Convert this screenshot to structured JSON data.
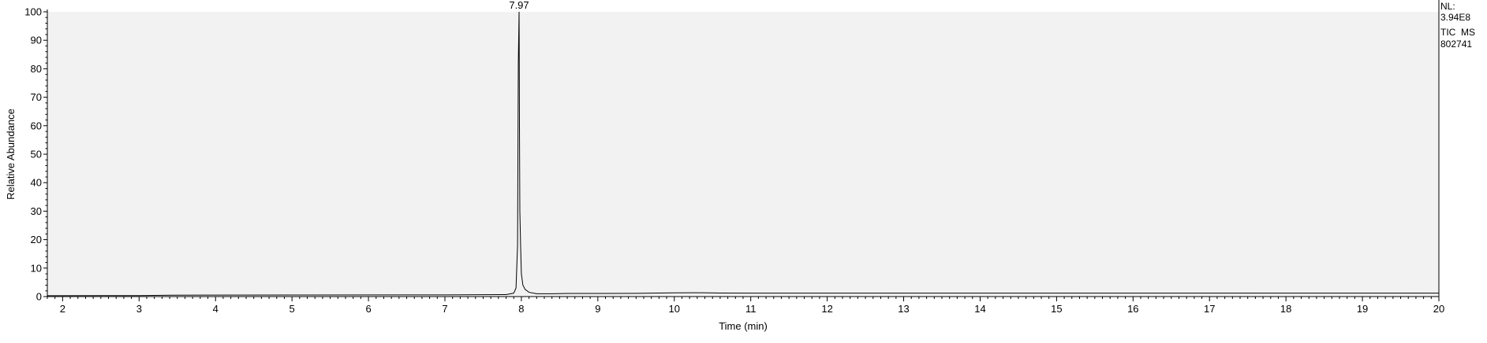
{
  "chart_data": {
    "type": "line",
    "title": "",
    "xlabel": "Time (min)",
    "ylabel": "Relative Abundance",
    "xlim": [
      1.8,
      20
    ],
    "ylim": [
      0,
      100
    ],
    "x_ticks": [
      2,
      3,
      4,
      5,
      6,
      7,
      8,
      9,
      10,
      11,
      12,
      13,
      14,
      15,
      16,
      17,
      18,
      19,
      20
    ],
    "y_ticks": [
      0,
      10,
      20,
      30,
      40,
      50,
      60,
      70,
      80,
      90,
      100
    ],
    "peak_labels": [
      {
        "x": 7.97,
        "y": 100,
        "label": "7.97"
      }
    ],
    "info": {
      "nl_label": "NL:",
      "nl_value": "3.94E8",
      "scan_filter": "TIC  MS",
      "sample_id": "802741"
    },
    "series": [
      {
        "name": "TIC MS 802741",
        "x": [
          1.8,
          3.0,
          3.4,
          5.0,
          7.0,
          7.8,
          7.9,
          7.93,
          7.95,
          7.96,
          7.97,
          7.975,
          7.98,
          7.99,
          8.0,
          8.02,
          8.05,
          8.1,
          8.2,
          8.4,
          8.6,
          9.0,
          9.5,
          10.0,
          10.3,
          10.6,
          11.0,
          12.0,
          14.0,
          16.0,
          18.0,
          20.0
        ],
        "values": [
          0.3,
          0.35,
          0.5,
          0.55,
          0.6,
          0.7,
          1.2,
          3.0,
          18.0,
          82.0,
          100.0,
          60.0,
          30.0,
          18.0,
          8.0,
          4.0,
          2.5,
          1.5,
          1.0,
          1.0,
          1.1,
          1.1,
          1.15,
          1.3,
          1.35,
          1.25,
          1.2,
          1.2,
          1.2,
          1.2,
          1.2,
          1.2
        ]
      }
    ]
  }
}
